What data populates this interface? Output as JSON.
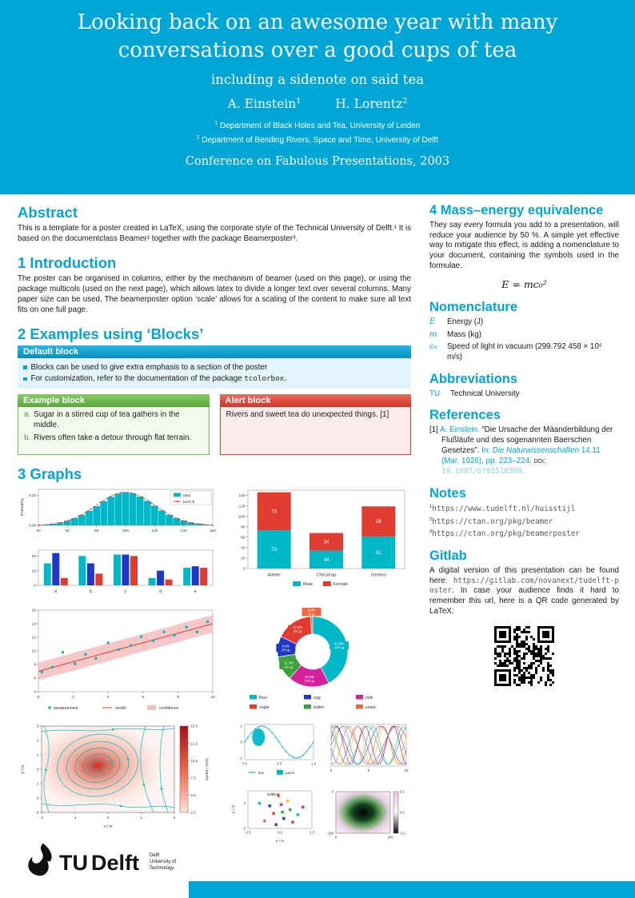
{
  "theme": {
    "accent_cyan": "#00A6D6",
    "teal": "#00B8C8",
    "red": "#E03C31",
    "blue": "#2038C8",
    "green": "#3BA13B",
    "block_green": "#6CC24A",
    "magenta": "#D6219C",
    "orange": "#EC6842"
  },
  "header": {
    "title_line1": "Looking back on an awesome year with many",
    "title_line2": "conversations over a good cups of tea",
    "subtitle": "including a sidenote on said tea",
    "authors": [
      {
        "name": "A. Einstein",
        "sup": "1"
      },
      {
        "name": "H. Lorentz",
        "sup": "2"
      }
    ],
    "affiliations": [
      {
        "sup": "1",
        "text": "Department of Black Holes and Tea, University of Leiden"
      },
      {
        "sup": "2",
        "text": "Department of Bending Rivers, Space and Time, University of Delft"
      }
    ],
    "conference": "Conference on Fabulous Presentations, 2003"
  },
  "left": {
    "abstract": {
      "heading": "Abstract",
      "text": "This is a template for a poster created in LaTeX, using the corporate style of the Technical University of Delft.¹ It is based on the documentclass Beamer² together with the package Beamerposter³."
    },
    "introduction": {
      "heading": "1 Introduction",
      "text": "The poster can be organised in columns, either by the mechanism of beamer (used on this page), or using the package multicols (used on the next page), which allows latex to divide a longer text over several columns. Many paper size can be used. The beamerposter option ‘scale’ allows for a scaling of the content to make sure all text fits on one full page."
    },
    "examples": {
      "heading": "2 Examples using ‘Blocks’"
    },
    "default_block": {
      "title": "Default block",
      "item1": "Blocks can be used to give extra emphasis to a section of the poster",
      "item2_pre": "For customization, refer to the documentation of the package ",
      "item2_code": "tcolorbox",
      "item2_post": "."
    },
    "example_block": {
      "title": "Example block",
      "items": [
        {
          "label": "a.",
          "text": "Sugar in a stirred cup of tea gathers in the middle."
        },
        {
          "label": "b.",
          "text": "Rivers often take a detour through flat terrain."
        }
      ]
    },
    "alert_block": {
      "title": "Alert block",
      "text": "Rivers and sweet tea do unexpected things. [1]"
    },
    "graphs": {
      "heading": "3 Graphs"
    }
  },
  "right": {
    "mass_energy": {
      "heading": "4 Mass–energy equivalence",
      "text": "They say every formula you add to a presentation, will reduce your audience by 50 %. A simple yet effective way to mitigate this effect, is adding a nomenclature to your document, containing the symbols used in the formulae.",
      "formula": "E = mc₀²"
    },
    "nomenclature": {
      "heading": "Nomenclature",
      "rows": [
        {
          "symbol": "E",
          "desc": "Energy (J)"
        },
        {
          "symbol": "m",
          "desc": "Mass (kg)"
        },
        {
          "symbol": "c₀",
          "desc": "Speed of light in vacuum (299.792 458 × 10⁶ m/s)"
        }
      ]
    },
    "abbreviations": {
      "heading": "Abbreviations",
      "rows": [
        {
          "abbr": "TU",
          "desc": "Technical University"
        }
      ]
    },
    "references": {
      "heading": "References",
      "entry": {
        "marker": "[1]",
        "author": "A. Einstein.",
        "title": "“Die Ursache der Mäanderbildung der Flußläufe und des sogenannten Baerschen Gesetzes”.",
        "in_label": "In:",
        "journal": "Die Naturwissenschaften",
        "volume": "14.11 (Mar. 1926),",
        "pages": "pp. 223–224.",
        "doi_label": "DOI:",
        "doi": "10.1007/bf01510300."
      }
    },
    "notes": {
      "heading": "Notes",
      "items": [
        {
          "sup": "1",
          "url": "https://www.tudelft.nl/huisstijl"
        },
        {
          "sup": "2",
          "url": "https://ctan.org/pkg/beamer"
        },
        {
          "sup": "3",
          "url": "https://ctan.org/pkg/beamerposter"
        }
      ]
    },
    "gitlab": {
      "heading": "Gitlab",
      "pre": "A digital version of this presentation can be found here: ",
      "url": "https://gitlab.com/novanext/tudelft-poster",
      "post": ". In case your audience finds it hard to remember this url, here is a QR code generated by LaTeX:"
    }
  },
  "logo": {
    "tu": "TU",
    "delft": "Delft",
    "tagline": [
      "Delft",
      "University of",
      "Technology"
    ]
  },
  "chart_data": [
    {
      "id": "histogram",
      "type": "bar",
      "ylabel": "Probability",
      "xlim": [
        40,
        160
      ],
      "ylim": [
        0,
        0.024
      ],
      "xticks": [
        40,
        60,
        80,
        100,
        120,
        140,
        160
      ],
      "yticks": [
        0,
        0.02
      ],
      "bin_start": 45,
      "bin_width": 5,
      "values": [
        0.0005,
        0.0011,
        0.0019,
        0.0031,
        0.0048,
        0.007,
        0.0097,
        0.0128,
        0.0161,
        0.019,
        0.0212,
        0.0221,
        0.0214,
        0.0192,
        0.0163,
        0.0131,
        0.0099,
        0.0071,
        0.0049,
        0.0032,
        0.002,
        0.0012,
        0.0006
      ],
      "fit": {
        "mean": 100,
        "sd": 20,
        "peak": 0.0221
      },
      "colors": {
        "bar": "#00B8C8",
        "fit": "#E03C31"
      },
      "legend": [
        "data",
        "best fit"
      ]
    },
    {
      "id": "grouped_bars",
      "type": "bar",
      "categories": [
        "a",
        "b",
        "c",
        "d",
        "e"
      ],
      "ylim": [
        0,
        24
      ],
      "yticks": [
        0,
        10,
        20
      ],
      "series": [
        {
          "color": "#00B8C8",
          "values": [
            15,
            20,
            21,
            5,
            12
          ]
        },
        {
          "color": "#2038C8",
          "values": [
            22,
            15,
            21,
            10,
            13
          ]
        },
        {
          "color": "#E03C31",
          "values": [
            5,
            8,
            20,
            4,
            12
          ]
        }
      ]
    },
    {
      "id": "stacked_bars",
      "type": "bar",
      "stacked": true,
      "categories": [
        "Adelie",
        "Chinstrap",
        "Gentoo"
      ],
      "ylim": [
        0,
        150
      ],
      "yticks": [
        0,
        20,
        40,
        60,
        80,
        100,
        120,
        140
      ],
      "series": [
        {
          "name": "Male",
          "color": "#00B8C8",
          "values": [
            73,
            34,
            61
          ]
        },
        {
          "name": "Female",
          "color": "#E03C31",
          "values": [
            73,
            34,
            58
          ]
        }
      ]
    },
    {
      "id": "regression",
      "type": "scatter",
      "xlim": [
        0,
        10
      ],
      "ylim": [
        4,
        16
      ],
      "xticks": [
        0,
        2,
        4,
        6,
        8,
        10
      ],
      "yticks": [
        4,
        6,
        8,
        10,
        12,
        14,
        16
      ],
      "points": [
        [
          0.2,
          6.9
        ],
        [
          0.8,
          7.6
        ],
        [
          1.4,
          9.8
        ],
        [
          2.1,
          8.1
        ],
        [
          2.7,
          9.5
        ],
        [
          3.3,
          8.9
        ],
        [
          4.0,
          11.2
        ],
        [
          4.6,
          10.2
        ],
        [
          5.3,
          10.8
        ],
        [
          5.9,
          12.1
        ],
        [
          6.6,
          11.5
        ],
        [
          7.2,
          12.8
        ],
        [
          7.8,
          12.3
        ],
        [
          8.5,
          13.5
        ],
        [
          9.1,
          12.8
        ],
        [
          9.7,
          14.3
        ]
      ],
      "model": {
        "x": [
          0,
          10
        ],
        "y": [
          7.0,
          14.0
        ]
      },
      "band_halfwidth": 1.3,
      "colors": {
        "points": "#00B8C8",
        "model": "#E03C31",
        "band": "#F6BDBD"
      },
      "legend": [
        "measurement",
        "model",
        "confidence"
      ]
    },
    {
      "id": "donut",
      "type": "pie",
      "slices": [
        {
          "label": "flour",
          "grams": 225,
          "pct": "42.5%",
          "color": "#00B8C8"
        },
        {
          "label": "milk",
          "grams": 100,
          "pct": "18.9%",
          "color": "#D6219C"
        },
        {
          "label": "butter",
          "grams": 60,
          "pct": "11.3%",
          "color": "#3BA13B"
        },
        {
          "label": "egg",
          "grams": 50,
          "pct": "9.4%",
          "color": "#2038C8"
        },
        {
          "label": "sugar",
          "grams": 90,
          "pct": "17.0%",
          "color": "#E03C31"
        },
        {
          "label": "yeast",
          "grams": 5,
          "pct": "0.9%",
          "color": "#EC6842"
        }
      ],
      "legend_order": [
        "flour",
        "sugar",
        "egg",
        "butter",
        "milk",
        "yeast"
      ]
    },
    {
      "id": "streamplot",
      "type": "heatmap",
      "xlabel": "x / m",
      "ylabel": "y / m",
      "xticks": [
        -2,
        -1,
        0,
        1,
        2
      ],
      "yticks": [
        -3,
        -2,
        -1,
        0,
        1,
        2,
        3
      ],
      "colorbar": {
        "label": "speed / (m/s)",
        "ticks": [
          2.5,
          5.0,
          7.5,
          10.0,
          12.5,
          15.0
        ]
      },
      "line_color": "#00B8C8"
    },
    {
      "id": "sine",
      "type": "line",
      "xticks": [
        0.0,
        0.5,
        1.0
      ],
      "yticks": [
        -1,
        0,
        1
      ],
      "color": "#00B8C8",
      "legend": [
        "line",
        "patch"
      ]
    },
    {
      "id": "multilines",
      "type": "line",
      "xticks": [
        0,
        5,
        10
      ],
      "colors": [
        "#E03C31",
        "#2038C8",
        "#3BA13B",
        "#D6219C",
        "#EC6842",
        "#00B8C8",
        "#6F1D77",
        "#FFB81C"
      ]
    },
    {
      "id": "field_scatter",
      "type": "scatter",
      "xlabel": "x / m",
      "ylabel": "y / m",
      "xticks": [
        -2.5,
        0.0,
        2.5
      ],
      "yticks": [
        0,
        2
      ],
      "annotation": "\\leftfield",
      "points": [
        [
          -0.5,
          1.2,
          "#E03C31"
        ],
        [
          0.3,
          0.8,
          "#2038C8"
        ],
        [
          0.8,
          1.5,
          "#3BA13B"
        ],
        [
          -1.2,
          0.6,
          "#EC6842"
        ],
        [
          0.1,
          1.9,
          "#D6219C"
        ],
        [
          1.4,
          1.1,
          "#00B8C8"
        ],
        [
          -0.3,
          0.3,
          "#6F1D77"
        ],
        [
          0.6,
          2.2,
          "#FFB81C"
        ],
        [
          1.0,
          0.5,
          "#E03C31"
        ],
        [
          -0.8,
          1.8,
          "#2038C8"
        ],
        [
          0.2,
          1.3,
          "#3BA13B"
        ],
        [
          -1.6,
          2.0,
          "#00B8C8"
        ],
        [
          1.8,
          1.7,
          "#D6219C"
        ],
        [
          -0.1,
          2.6,
          "#EC6842"
        ]
      ]
    },
    {
      "id": "image_plot",
      "type": "heatmap",
      "xticks": [
        0,
        200
      ],
      "yticks": [
        0,
        100
      ],
      "colorbar": {
        "ticks": [
          0.1,
          0.0,
          -0.1
        ]
      }
    }
  ]
}
